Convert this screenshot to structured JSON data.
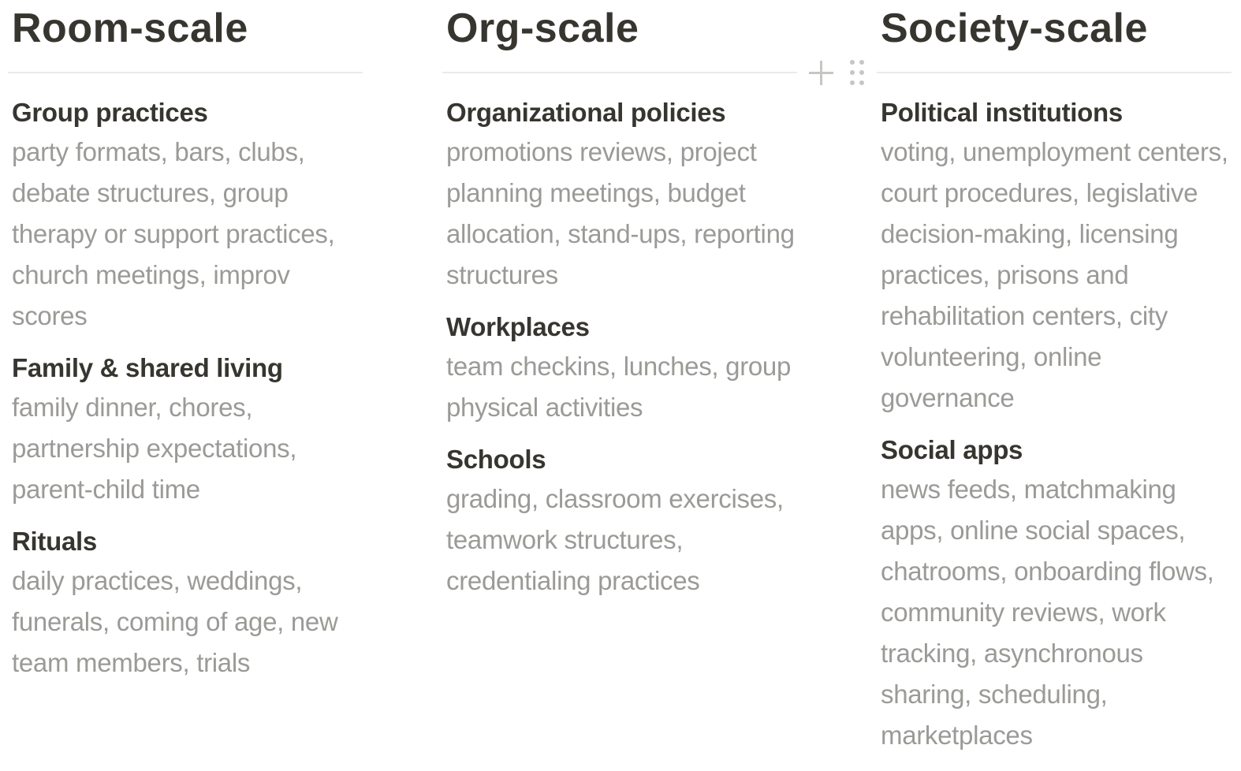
{
  "columns": [
    {
      "title": "Room-scale",
      "sections": [
        {
          "heading": "Group practices",
          "body": "party formats, bars, clubs, debate structures, group therapy or support practices, church meetings, improv scores"
        },
        {
          "heading": "Family & shared living",
          "body": "family dinner, chores, partnership expectations, parent-child time"
        },
        {
          "heading": "Rituals",
          "body": "daily practices, weddings, funerals, coming of age, new team members, trials"
        }
      ]
    },
    {
      "title": "Org-scale",
      "sections": [
        {
          "heading": "Organizational policies",
          "body": "promotions reviews, project planning meetings, budget allocation, stand-ups, reporting structures"
        },
        {
          "heading": "Workplaces",
          "body": "team checkins, lunches, group physical activities"
        },
        {
          "heading": "Schools",
          "body": "grading, classroom exercises, teamwork structures, credentialing practices"
        }
      ]
    },
    {
      "title": "Society-scale",
      "sections": [
        {
          "heading": "Political institutions",
          "body": "voting, unemployment centers, court procedures, legislative decision-making, licensing practices, prisons and rehabilitation centers, city volunteering, online governance"
        },
        {
          "heading": "Social apps",
          "body": "news feeds, matchmaking apps, online social spaces, chatrooms, onboarding flows, community reviews, work tracking, asynchronous sharing, scheduling, marketplaces"
        }
      ]
    }
  ],
  "block_controls": {
    "add_icon": "plus-icon",
    "drag_icon": "drag-handle-icon"
  }
}
